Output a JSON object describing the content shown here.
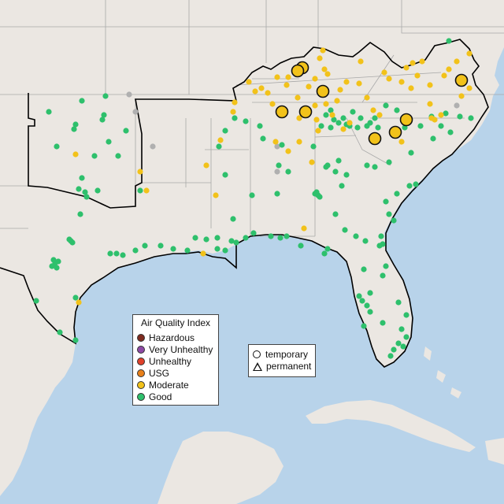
{
  "legend_aqi": {
    "title": "Air Quality Index",
    "items": [
      {
        "label": "Hazardous",
        "color": "#7e2b1f"
      },
      {
        "label": "Very Unhealthy",
        "color": "#8e4aa6"
      },
      {
        "label": "Unhealthy",
        "color": "#e0412b"
      },
      {
        "label": "USG",
        "color": "#e8801a"
      },
      {
        "label": "Moderate",
        "color": "#f2c21a"
      },
      {
        "label": "Good",
        "color": "#2ec06c"
      }
    ]
  },
  "legend_type": {
    "items": [
      {
        "label": "temporary",
        "shape": "circle-icon"
      },
      {
        "label": "permanent",
        "shape": "triangle-icon"
      }
    ]
  },
  "colors": {
    "water": "#b8d3ea",
    "land": "#ebe7e2",
    "region_outline": "#000000",
    "state_border": "#a8a8a8",
    "no_data": "#b0b0b0"
  }
}
